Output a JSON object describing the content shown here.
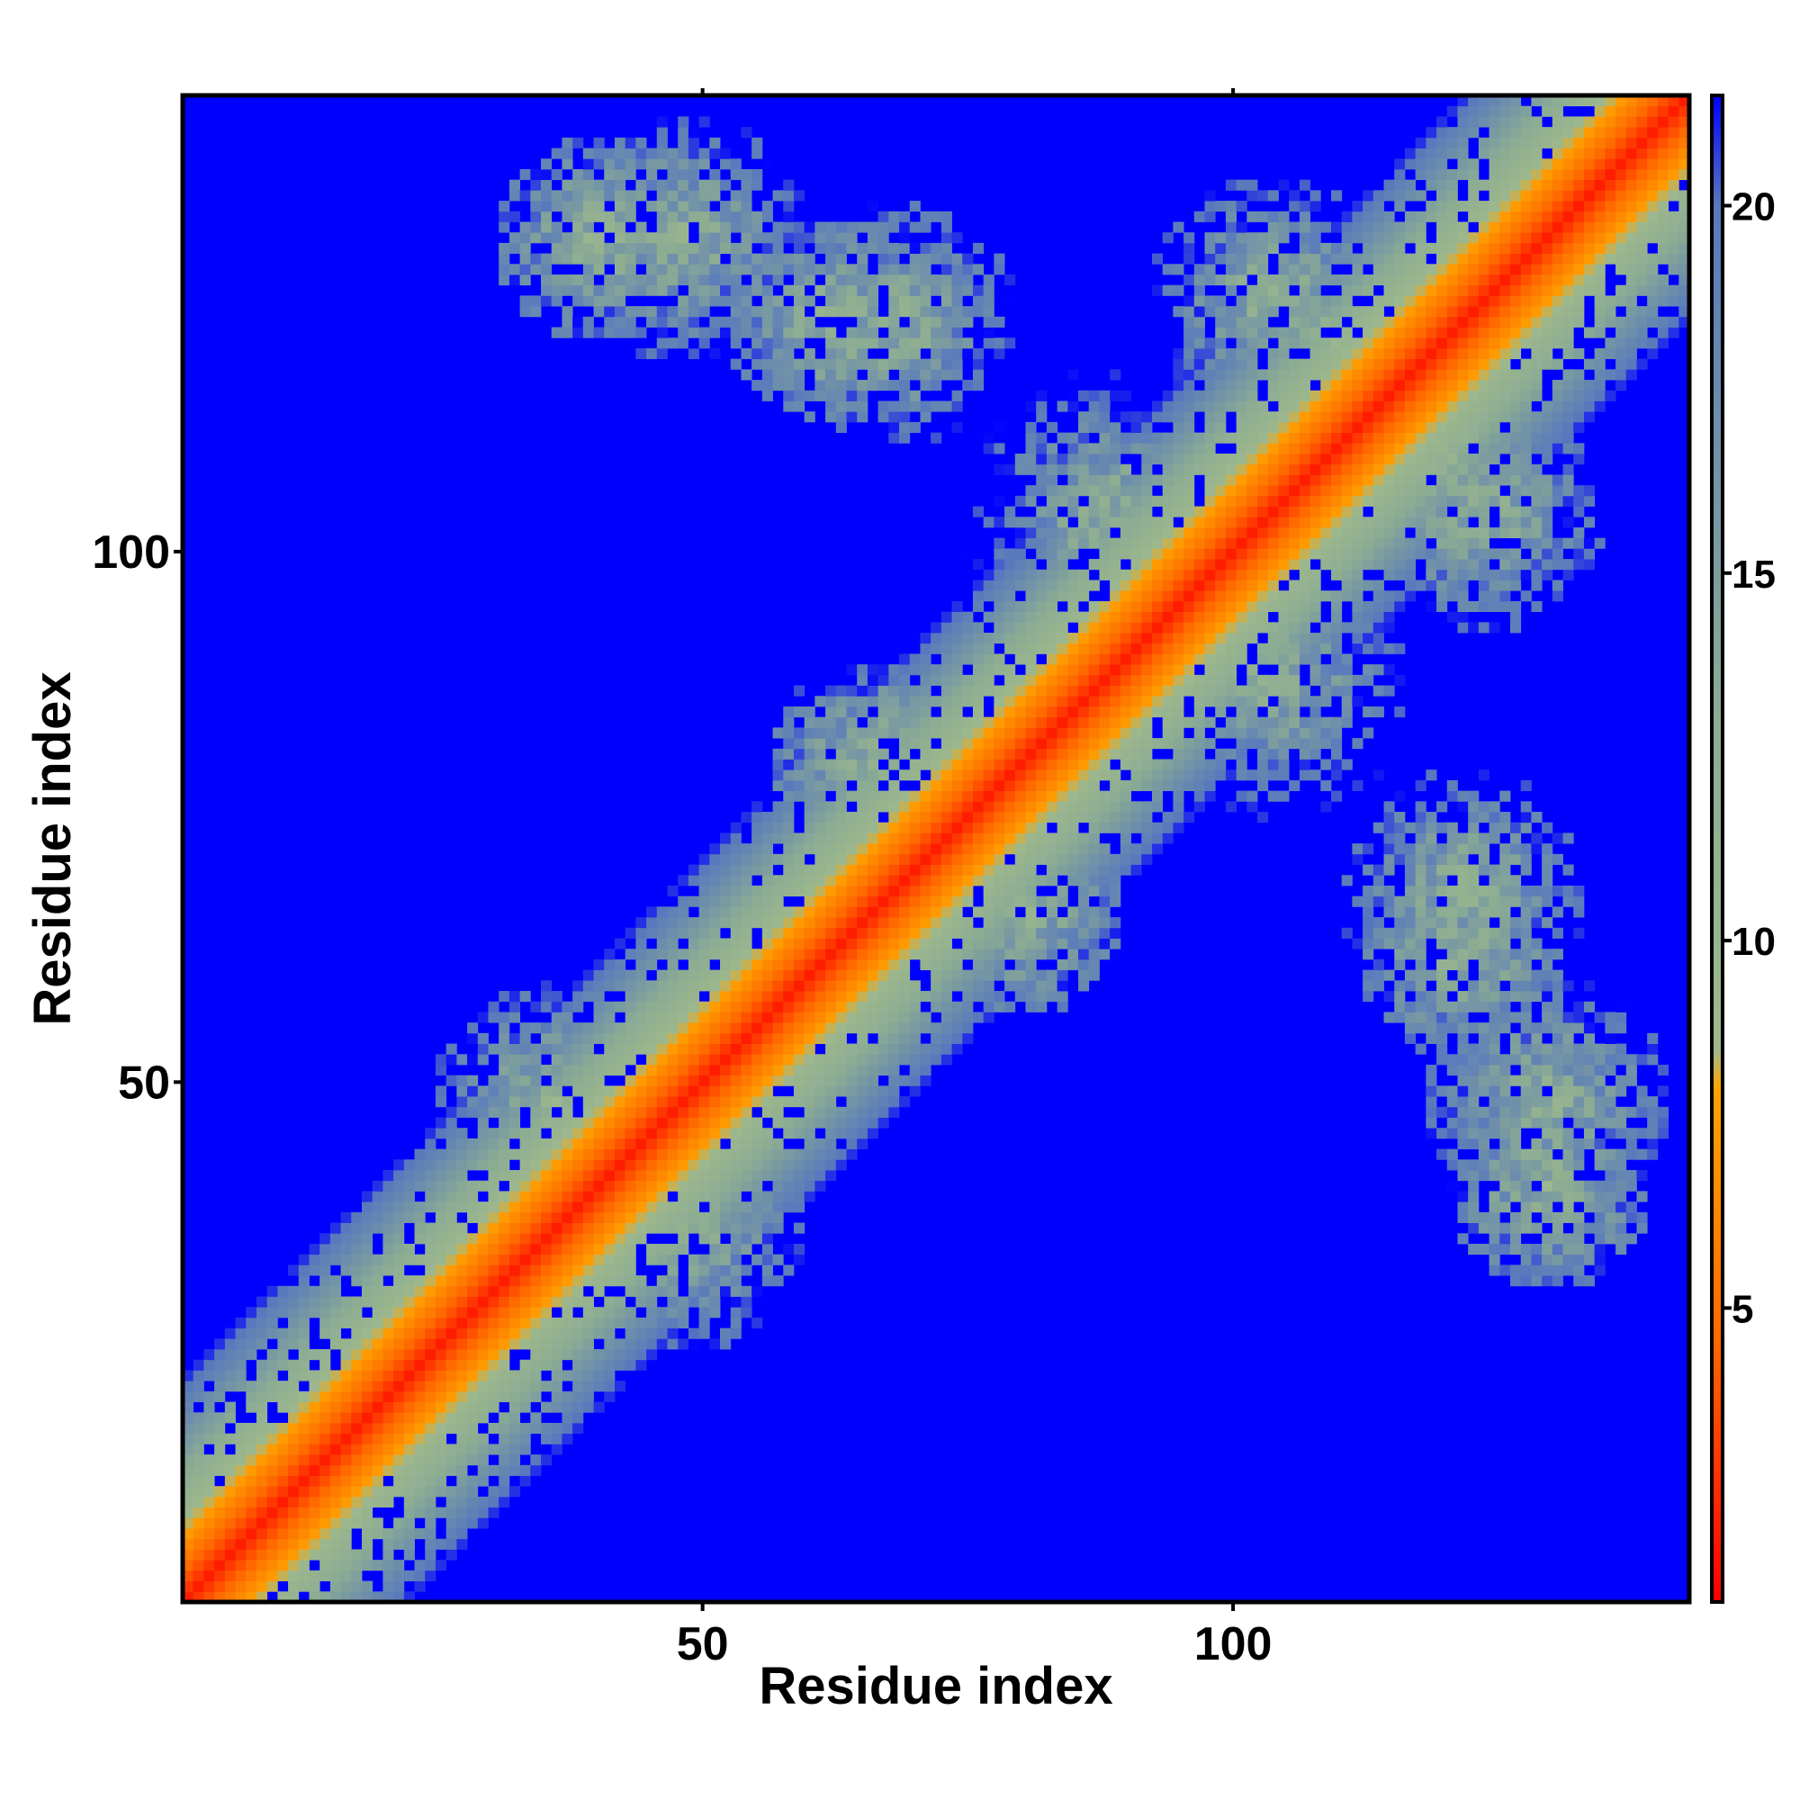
{
  "chart_data": {
    "type": "heatmap",
    "title": "",
    "xlabel": "Residue index",
    "ylabel": "Residue index",
    "n_residues": 143,
    "xlim": [
      1,
      143
    ],
    "ylim": [
      1,
      143
    ],
    "x_ticks": [
      50,
      100
    ],
    "y_ticks": [
      50,
      100
    ],
    "grid": false,
    "colorbar": {
      "position": "right",
      "range": [
        1,
        21.5
      ],
      "ticks": [
        5,
        10,
        15,
        20
      ],
      "colors": [
        {
          "value": 1,
          "color": "#ff0000"
        },
        {
          "value": 4.5,
          "color": "#ff6600"
        },
        {
          "value": 8.0,
          "color": "#ffa500"
        },
        {
          "value": 8.5,
          "color": "#9fb98d"
        },
        {
          "value": 13,
          "color": "#8cac93"
        },
        {
          "value": 20,
          "color": "#5979bd"
        },
        {
          "value": 21.5,
          "color": "#0000ff"
        }
      ]
    },
    "description_of_values": "symmetric residue-residue distance map; values in Angstrom, saturated at 21.5",
    "domains": [
      {
        "residues": [
          1,
          143
        ],
        "band": "diagonal"
      }
    ],
    "contact_patches": [
      {
        "center": [
          48,
          36
        ],
        "spread": 12
      },
      {
        "center": [
          66,
          80
        ],
        "spread": 10
      },
      {
        "center": [
          88,
          104
        ],
        "spread": 14
      },
      {
        "center": [
          120,
          110
        ],
        "spread": 13
      },
      {
        "center": [
          130,
          48
        ],
        "spread": 12
      },
      {
        "center": [
          122,
          68
        ],
        "spread": 12
      },
      {
        "center": [
          40,
          130
        ],
        "spread": 10
      },
      {
        "center": [
          62,
          122
        ],
        "spread": 10
      },
      {
        "center": [
          104,
          124
        ],
        "spread": 12
      }
    ]
  }
}
